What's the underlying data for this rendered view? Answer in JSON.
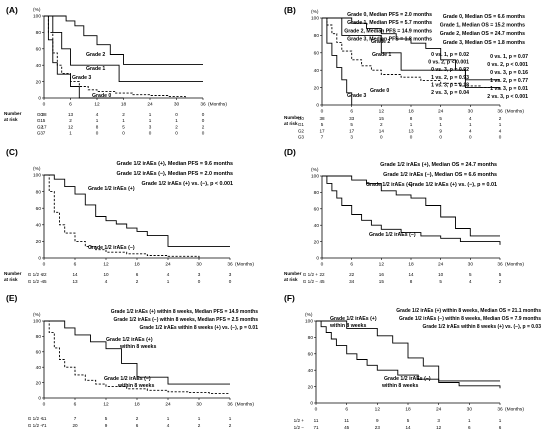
{
  "chart_data": [
    {
      "type": "line",
      "panel": "(A)",
      "step": true,
      "y_unit": "(%)",
      "x_unit": "(Months)",
      "xticks": [
        0,
        6,
        12,
        18,
        24,
        30,
        36
      ],
      "yticks": [
        0,
        20,
        40,
        60,
        80,
        100
      ],
      "xlim": [
        0,
        36
      ],
      "ylim": [
        0,
        100
      ],
      "annotations": [
        "Grade 0, Median PFS = 2.0 months",
        "Grade 1, Median PFS = 5.7 months",
        "Grade 2, Median PFS = 14.9 months",
        "Grade 3, Median PFS = 1.8 months"
      ],
      "pvalues": [
        "0 vs. 1, p = 0.02",
        "0 vs. 2, p < 0.001",
        "0 vs. 3, p = 0.92",
        "1 vs. 2, p = 0.93",
        "1 vs. 3, p = 0.18",
        "2 vs. 3, p = 0.04"
      ],
      "series": [
        {
          "name": "Grade 2",
          "style": "solid",
          "x": [
            0,
            5,
            7,
            9,
            12,
            15,
            18,
            36
          ],
          "y": [
            100,
            94,
            88,
            76,
            65,
            53,
            41,
            41
          ]
        },
        {
          "name": "Grade 1",
          "style": "solid",
          "x": [
            0,
            2,
            4,
            6,
            8,
            12,
            17,
            36
          ],
          "y": [
            100,
            80,
            60,
            40,
            40,
            40,
            20,
            20
          ]
        },
        {
          "name": "Grade 3",
          "style": "solid",
          "x": [
            0,
            1,
            2,
            3,
            5,
            6,
            8,
            18
          ],
          "y": [
            100,
            71,
            43,
            29,
            29,
            14,
            0,
            0
          ]
        },
        {
          "name": "Grade 0",
          "style": "dashed",
          "x": [
            0,
            1,
            2,
            3,
            4,
            6,
            8,
            10,
            12,
            16,
            20,
            24,
            28,
            32
          ],
          "y": [
            100,
            80,
            55,
            40,
            30,
            20,
            14,
            10,
            8,
            6,
            4,
            3,
            2,
            0
          ]
        }
      ],
      "curve_labels": [
        "Grade 2",
        "Grade 1",
        "Grade 3",
        "Grade 0"
      ],
      "risk_header": [
        "Number",
        "at risk"
      ],
      "risk_table": [
        {
          "group": "G0",
          "counts": [
            38,
            13,
            4,
            2,
            1,
            0,
            0
          ]
        },
        {
          "group": "G1",
          "counts": [
            5,
            2,
            1,
            1,
            1,
            1,
            0
          ]
        },
        {
          "group": "G2",
          "counts": [
            17,
            12,
            8,
            5,
            3,
            2,
            2
          ]
        },
        {
          "group": "G3",
          "counts": [
            7,
            1,
            0,
            0,
            0,
            0,
            0
          ]
        }
      ]
    },
    {
      "type": "line",
      "panel": "(B)",
      "step": true,
      "y_unit": "(%)",
      "x_unit": "(Months)",
      "xticks": [
        0,
        6,
        12,
        18,
        24,
        30,
        36
      ],
      "yticks": [
        0,
        20,
        40,
        60,
        80,
        100
      ],
      "xlim": [
        0,
        36
      ],
      "ylim": [
        0,
        100
      ],
      "annotations": [
        "Grade 0, Median OS = 6.6 months",
        "Grade 1, Median OS = 15.2 months",
        "Grade 2, Median OS = 24.7 months",
        "Grade 3, Median OS = 1.8 months"
      ],
      "pvalues": [
        "0 vs. 1, p = 0.07",
        "0 vs. 2, p < 0.001",
        "0 vs. 3, p = 0.16",
        "1 vs. 2, p = 0.77",
        "1 vs. 3, p = 0.01",
        "2 vs. 3, p < 0.001"
      ],
      "series": [
        {
          "name": "Grade 2",
          "style": "solid",
          "x": [
            0,
            6,
            9,
            12,
            15,
            18,
            21,
            24,
            27,
            29,
            36
          ],
          "y": [
            100,
            94,
            88,
            82,
            76,
            71,
            65,
            52,
            40,
            29,
            29
          ]
        },
        {
          "name": "Grade 1",
          "style": "solid",
          "x": [
            0,
            4,
            8,
            12,
            16,
            29,
            36
          ],
          "y": [
            100,
            80,
            80,
            60,
            40,
            20,
            20
          ]
        },
        {
          "name": "Grade 3",
          "style": "solid",
          "x": [
            0,
            1,
            2,
            3,
            4,
            5,
            6
          ],
          "y": [
            100,
            71,
            57,
            43,
            29,
            14,
            0
          ]
        },
        {
          "name": "Grade 0",
          "style": "dashed",
          "x": [
            0,
            1,
            2,
            3,
            4,
            6,
            8,
            10,
            12,
            16,
            20,
            24,
            28,
            32,
            36
          ],
          "y": [
            100,
            92,
            82,
            72,
            62,
            52,
            45,
            40,
            35,
            32,
            28,
            25,
            22,
            20,
            18
          ]
        }
      ],
      "curve_labels": [
        "Grade 2",
        "Grade 1",
        "Grade 3",
        "Grade 0"
      ],
      "risk_header": [
        "Number",
        "at risk"
      ],
      "risk_table": [
        {
          "group": "G0",
          "counts": [
            38,
            33,
            15,
            8,
            5,
            4,
            2
          ]
        },
        {
          "group": "G1",
          "counts": [
            5,
            5,
            2,
            1,
            1,
            1,
            1
          ]
        },
        {
          "group": "G2",
          "counts": [
            17,
            17,
            14,
            13,
            9,
            4,
            4
          ]
        },
        {
          "group": "G3",
          "counts": [
            7,
            3,
            0,
            0,
            0,
            0,
            0
          ]
        }
      ]
    },
    {
      "type": "line",
      "panel": "(C)",
      "step": true,
      "y_unit": "(%)",
      "x_unit": "(Months)",
      "xticks": [
        0,
        6,
        12,
        18,
        24,
        30,
        36
      ],
      "yticks": [
        0,
        20,
        40,
        60,
        80,
        100
      ],
      "xlim": [
        0,
        36
      ],
      "ylim": [
        0,
        100
      ],
      "annotations": [
        "Grade 1/2 irAEs (+), Median PFS = 9.6 months",
        "Grade 1/2 irAEs (−), Median PFS = 2.0 months",
        "Grade 1/2 irAEs (+) vs. (−), p < 0.001"
      ],
      "pvalues": [],
      "series": [
        {
          "name": "Grade 1/2 irAEs (+)",
          "style": "solid",
          "x": [
            0,
            2,
            4,
            6,
            8,
            10,
            12,
            14,
            16,
            18,
            20,
            24,
            36
          ],
          "y": [
            100,
            95,
            86,
            77,
            64,
            50,
            45,
            41,
            36,
            32,
            27,
            14,
            14
          ]
        },
        {
          "name": "Grade 1/2 irAEs (−)",
          "style": "dashed",
          "x": [
            0,
            1,
            2,
            3,
            4,
            6,
            8,
            10,
            12,
            16,
            20,
            24,
            30
          ],
          "y": [
            100,
            80,
            55,
            40,
            30,
            20,
            14,
            10,
            7,
            5,
            3,
            2,
            0
          ]
        }
      ],
      "curve_labels": [
        "Grade 1/2 irAEs (+)",
        "Grade 1/2 irAEs (−)"
      ],
      "risk_header": [
        "Number",
        "at risk"
      ],
      "risk_table": [
        {
          "group": "G 1/2 +",
          "counts": [
            22,
            14,
            10,
            6,
            4,
            3,
            3
          ]
        },
        {
          "group": "G 1/2 −",
          "counts": [
            45,
            13,
            4,
            2,
            1,
            0,
            0
          ]
        }
      ]
    },
    {
      "type": "line",
      "panel": "(D)",
      "step": true,
      "y_unit": "(%)",
      "x_unit": "(Months)",
      "xticks": [
        0,
        6,
        12,
        18,
        24,
        30,
        36
      ],
      "yticks": [
        0,
        20,
        40,
        60,
        80,
        100
      ],
      "xlim": [
        0,
        36
      ],
      "ylim": [
        0,
        100
      ],
      "annotations": [
        "Grade 1/2 irAEs (+), Median OS = 24.7 months",
        "Grade 1/2 irAEs (−), Median OS = 6.6 months",
        "Grade 1/2 irAEs (+) vs. (−), p = 0.01"
      ],
      "pvalues": [],
      "series": [
        {
          "name": "Grade 1/2 irAEs (+)",
          "style": "solid",
          "x": [
            0,
            6,
            9,
            12,
            15,
            18,
            21,
            24,
            27,
            30,
            36
          ],
          "y": [
            100,
            95,
            91,
            82,
            77,
            73,
            64,
            50,
            36,
            27,
            27
          ]
        },
        {
          "name": "Grade 1/2 irAEs (−)",
          "style": "solid",
          "x": [
            0,
            1,
            2,
            3,
            4,
            6,
            8,
            10,
            12,
            16,
            20,
            24,
            28,
            36
          ],
          "y": [
            100,
            91,
            82,
            73,
            64,
            53,
            46,
            40,
            35,
            31,
            27,
            24,
            20,
            16
          ]
        }
      ],
      "curve_labels": [
        "Grade 1/2 irAEs (+)",
        "Grade 1/2 irAEs (−)"
      ],
      "risk_header": [
        "Number",
        "at risk"
      ],
      "risk_table": [
        {
          "group": "G 1/2 +",
          "counts": [
            22,
            22,
            16,
            14,
            10,
            5,
            5
          ]
        },
        {
          "group": "G 1/2 −",
          "counts": [
            45,
            34,
            15,
            8,
            5,
            4,
            2
          ]
        }
      ]
    },
    {
      "type": "line",
      "panel": "(E)",
      "step": true,
      "y_unit": "(%)",
      "x_unit": "(Months)",
      "xticks": [
        0,
        6,
        12,
        18,
        24,
        30,
        36
      ],
      "yticks": [
        0,
        20,
        40,
        60,
        80,
        100
      ],
      "xlim": [
        0,
        36
      ],
      "ylim": [
        0,
        100
      ],
      "annotations": [
        "Grade 1/2 irAEs (+) within 8 weeks, Median PFS = 14.9 months",
        "Grade 1/2 irAEs (−) within 8 weeks, Median PFS = 2.5 months",
        "Grade 1/2 irAEs within 8 weeks (+) vs. (−), p = 0.01"
      ],
      "pvalues": [],
      "series": [
        {
          "name": "Grade 1/2 irAEs (+) within 8 weeks",
          "style": "solid",
          "x": [
            0,
            4,
            6,
            9,
            12,
            15,
            18,
            24,
            36
          ],
          "y": [
            100,
            91,
            82,
            73,
            64,
            45,
            27,
            18,
            18
          ]
        },
        {
          "name": "Grade 1/2 irAEs (−) within 8 weeks",
          "style": "dashed",
          "x": [
            0,
            1,
            2,
            3,
            4,
            6,
            8,
            10,
            12,
            16,
            20,
            24,
            28,
            32,
            36
          ],
          "y": [
            100,
            85,
            65,
            50,
            40,
            30,
            23,
            18,
            15,
            12,
            10,
            8,
            7,
            6,
            6
          ]
        }
      ],
      "curve_labels": [
        "Grade 1/2 irAEs (+)",
        "within 8 weeks",
        "Grade 1/2 irAEs (−)",
        "within 8 weeks"
      ],
      "risk_header": [
        "",
        ""
      ],
      "risk_table": [
        {
          "group": "G 1/2 +",
          "counts": [
            11,
            7,
            5,
            2,
            1,
            1,
            1
          ]
        },
        {
          "group": "G 1/2 −",
          "counts": [
            71,
            20,
            9,
            6,
            4,
            2,
            2
          ]
        }
      ]
    },
    {
      "type": "line",
      "panel": "(F)",
      "step": true,
      "y_unit": "(%)",
      "x_unit": "(Months)",
      "xticks": [
        0,
        6,
        12,
        18,
        24,
        30,
        36
      ],
      "yticks": [
        0,
        20,
        40,
        60,
        80,
        100
      ],
      "xlim": [
        0,
        36
      ],
      "ylim": [
        0,
        100
      ],
      "annotations": [
        "Grade 1/2 irAEs (+) within 8 weeks, Median OS = 21.1 months",
        "Grade 1/2 irAEs (−) within 8 weeks, Median OS = 7.9 months",
        "Grade 1/2 irAEs within 8 weeks (+) vs. (−), p = 0.03"
      ],
      "pvalues": [],
      "series": [
        {
          "name": "Grade 1/2 irAEs (+) within 8 weeks",
          "style": "solid",
          "x": [
            0,
            6,
            12,
            15,
            18,
            21,
            24,
            36
          ],
          "y": [
            100,
            91,
            82,
            73,
            55,
            45,
            27,
            27
          ]
        },
        {
          "name": "Grade 1/2 irAEs (−) within 8 weeks",
          "style": "solid",
          "x": [
            0,
            1,
            2,
            3,
            4,
            6,
            8,
            10,
            12,
            16,
            20,
            24,
            28,
            36
          ],
          "y": [
            100,
            93,
            86,
            78,
            70,
            60,
            53,
            46,
            40,
            34,
            29,
            25,
            21,
            18
          ]
        }
      ],
      "curve_labels": [
        "Grade 1/2 irAEs (+)",
        "within 8 weeks",
        "Grade 1/2 irAEs (−)",
        "within 8 weeks"
      ],
      "risk_header": [
        "",
        ""
      ],
      "risk_table": [
        {
          "group": "1/2 +",
          "counts": [
            11,
            11,
            9,
            5,
            3,
            1,
            1
          ]
        },
        {
          "group": "1/2 −",
          "counts": [
            71,
            45,
            23,
            14,
            12,
            6,
            6
          ]
        }
      ]
    }
  ]
}
